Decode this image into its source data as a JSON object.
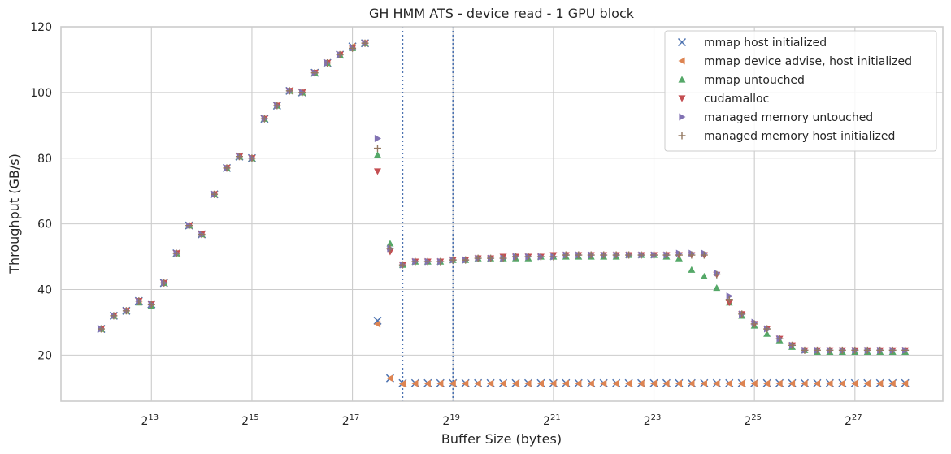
{
  "chart_data": {
    "type": "scatter",
    "title": "GH HMM ATS - device read - 1 GPU block",
    "xlabel": "Buffer Size (bytes)",
    "ylabel": "Throughput (GB/s)",
    "x_scale": "log2",
    "xlim_log2": [
      11.2,
      28.75
    ],
    "ylim": [
      6,
      120
    ],
    "xticks": [
      {
        "base": "2",
        "exp": "13",
        "log2": 13
      },
      {
        "base": "2",
        "exp": "15",
        "log2": 15
      },
      {
        "base": "2",
        "exp": "17",
        "log2": 17
      },
      {
        "base": "2",
        "exp": "19",
        "log2": 19
      },
      {
        "base": "2",
        "exp": "21",
        "log2": 21
      },
      {
        "base": "2",
        "exp": "23",
        "log2": 23
      },
      {
        "base": "2",
        "exp": "25",
        "log2": 25
      },
      {
        "base": "2",
        "exp": "27",
        "log2": 27
      }
    ],
    "yticks": [
      "20",
      "40",
      "60",
      "80",
      "100",
      "120"
    ],
    "grid": true,
    "legend_position": "top-right",
    "vlines_log2": [
      18,
      19
    ],
    "x_log2": [
      12,
      12.25,
      12.5,
      12.75,
      13,
      13.25,
      13.5,
      13.75,
      14,
      14.25,
      14.5,
      14.75,
      15,
      15.25,
      15.5,
      15.75,
      16,
      16.25,
      16.5,
      16.75,
      17,
      17.25,
      17.5,
      17.75,
      18,
      18.25,
      18.5,
      18.75,
      19,
      19.25,
      19.5,
      19.75,
      20,
      20.25,
      20.5,
      20.75,
      21,
      21.25,
      21.5,
      21.75,
      22,
      22.25,
      22.5,
      22.75,
      23,
      23.25,
      23.5,
      23.75,
      24,
      24.25,
      24.5,
      24.75,
      25,
      25.25,
      25.5,
      25.75,
      26,
      26.25,
      26.5,
      26.75,
      27,
      27.25,
      27.5,
      27.75,
      28
    ],
    "series": [
      {
        "name": "mmap host initialized",
        "marker": "x",
        "color": "#4c72b0",
        "y": [
          28,
          32,
          33.5,
          36.5,
          35.5,
          42,
          51,
          59.5,
          56.8,
          69,
          77,
          80.5,
          80,
          92,
          96,
          100.5,
          100,
          106,
          109,
          111.5,
          114,
          115,
          30.5,
          13,
          11.5,
          11.5,
          11.5,
          11.5,
          11.5,
          11.5,
          11.5,
          11.5,
          11.5,
          11.5,
          11.5,
          11.5,
          11.5,
          11.5,
          11.5,
          11.5,
          11.5,
          11.5,
          11.5,
          11.5,
          11.5,
          11.5,
          11.5,
          11.5,
          11.5,
          11.5,
          11.5,
          11.5,
          11.5,
          11.5,
          11.5,
          11.5,
          11.5,
          11.5,
          11.5,
          11.5,
          11.5,
          11.5,
          11.5,
          11.5,
          11.5
        ]
      },
      {
        "name": "mmap device advise, host initialized",
        "marker": "triangle-left",
        "color": "#dd8452",
        "y": [
          28,
          32,
          33.5,
          36.5,
          35.5,
          42,
          51,
          59.5,
          56.8,
          69,
          77,
          80.5,
          80,
          92,
          96,
          100.5,
          100,
          106,
          109,
          111.5,
          114,
          115,
          29.5,
          13,
          11.3,
          11.4,
          11.4,
          11.4,
          11.4,
          11.4,
          11.4,
          11.4,
          11.4,
          11.4,
          11.4,
          11.4,
          11.4,
          11.4,
          11.4,
          11.4,
          11.4,
          11.4,
          11.4,
          11.4,
          11.4,
          11.4,
          11.4,
          11.4,
          11.4,
          11.4,
          11.4,
          11.4,
          11.4,
          11.4,
          11.4,
          11.4,
          11.4,
          11.4,
          11.4,
          11.4,
          11.4,
          11.4,
          11.4,
          11.4,
          11.4
        ]
      },
      {
        "name": "mmap untouched",
        "marker": "triangle-up",
        "color": "#55a868",
        "y": [
          28,
          32,
          33.5,
          36,
          35,
          42,
          51,
          59.5,
          56.8,
          69,
          77,
          80.5,
          80,
          92,
          96,
          100.5,
          100,
          106,
          109,
          111.5,
          113.5,
          115,
          81,
          54,
          47.5,
          48.5,
          48.5,
          48.5,
          49,
          49,
          49.5,
          49.5,
          49.5,
          49.5,
          49.5,
          50,
          50,
          50,
          50,
          50,
          50,
          50,
          50.5,
          50.5,
          50.5,
          50,
          49.5,
          46,
          44,
          40.5,
          36,
          32,
          29,
          26.5,
          24.5,
          22.5,
          21.5,
          21,
          21,
          21,
          21,
          21,
          21,
          21,
          21
        ]
      },
      {
        "name": "cudamalloc",
        "marker": "triangle-down",
        "color": "#c44e52",
        "y": [
          28,
          32,
          33.5,
          36.5,
          35.5,
          42,
          51,
          59.5,
          56.8,
          69,
          77,
          80.5,
          80,
          92,
          96,
          100.5,
          100,
          106,
          109,
          111.5,
          113.5,
          115,
          76,
          51.5,
          47.5,
          48.5,
          48.5,
          48.5,
          49,
          49,
          49.5,
          49.5,
          50,
          50,
          50,
          50,
          50.5,
          50.5,
          50.5,
          50.5,
          50.5,
          50.5,
          50.5,
          50.5,
          50.5,
          50.5,
          50.5,
          50.5,
          50.5,
          44.5,
          36,
          32.5,
          29.5,
          28,
          25,
          23,
          21.5,
          21.5,
          21.5,
          21.5,
          21.5,
          21.5,
          21.5,
          21.5,
          21.5
        ]
      },
      {
        "name": "managed memory untouched",
        "marker": "triangle-right",
        "color": "#8172b3",
        "y": [
          28,
          32,
          33.5,
          36.5,
          35.5,
          42,
          51,
          59.5,
          56.8,
          69,
          77,
          80.5,
          80,
          92,
          96,
          100.5,
          100,
          106,
          109,
          111.5,
          113.5,
          115,
          86,
          52.5,
          47.5,
          48.5,
          48.5,
          48.5,
          49,
          49,
          49.5,
          49.5,
          49.5,
          50,
          50,
          50,
          50,
          50.5,
          50.5,
          50.5,
          50.5,
          50.5,
          50.5,
          50.5,
          50.5,
          50.5,
          51,
          51,
          51,
          45,
          38,
          32.5,
          30,
          28,
          25,
          23,
          21.5,
          21.5,
          21.5,
          21.5,
          21.5,
          21.5,
          21.5,
          21.5,
          21.5
        ]
      },
      {
        "name": "managed memory host initialized",
        "marker": "plus",
        "color": "#937860",
        "y": [
          28,
          32,
          33.5,
          36.5,
          35.5,
          42,
          51,
          59.5,
          56.8,
          69,
          77,
          80.5,
          80,
          92,
          96,
          100.5,
          100,
          106,
          109,
          111.5,
          113.5,
          115,
          83,
          52.5,
          47.5,
          48.5,
          48.5,
          48.5,
          49,
          49,
          49.5,
          49.5,
          49.5,
          50,
          50,
          50,
          50,
          50.5,
          50.5,
          50.5,
          50.5,
          50.5,
          50.5,
          50.5,
          50.5,
          50.5,
          50.5,
          50.5,
          50.5,
          44.5,
          37,
          32.5,
          29.5,
          28,
          25,
          23,
          21.5,
          21.5,
          21.5,
          21.5,
          21.5,
          21.5,
          21.5,
          21.5,
          21.5
        ]
      }
    ]
  }
}
